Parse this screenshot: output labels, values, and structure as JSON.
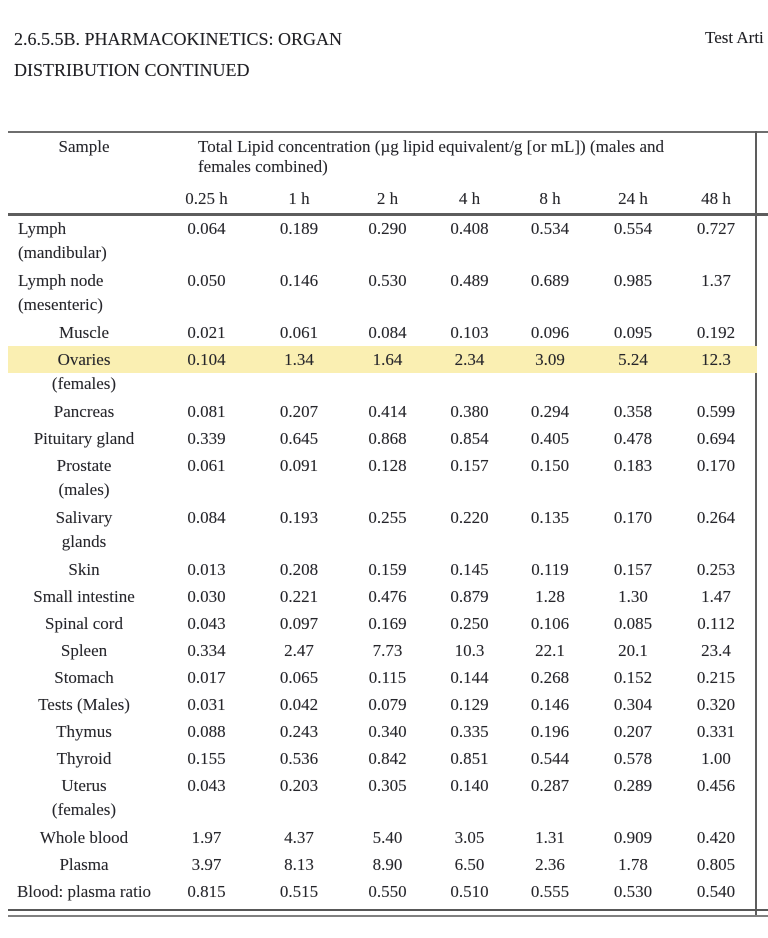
{
  "page": {
    "title_line1": "2.6.5.5B. PHARMACOKINETICS: ORGAN",
    "title_line2": "DISTRIBUTION CONTINUED",
    "header_right": "Test Arti"
  },
  "table": {
    "corner_header": "Sample",
    "span_header": "Total Lipid concentration (µg lipid equivalent/g [or mL]) (males and females combined)",
    "time_headers": [
      "0.25 h",
      "1 h",
      "2 h",
      "4 h",
      "8 h",
      "24 h",
      "48 h"
    ],
    "highlight_color": "#FAEFB2",
    "rows": [
      {
        "label": "Lymph",
        "align": "left",
        "values": [
          "0.064",
          "0.189",
          "0.290",
          "0.408",
          "0.534",
          "0.554",
          "0.727"
        ]
      },
      {
        "label": "(mandibular)",
        "align": "left",
        "values": []
      },
      {
        "label": "Lymph node",
        "align": "left",
        "values": [
          "0.050",
          "0.146",
          "0.530",
          "0.489",
          "0.689",
          "0.985",
          "1.37"
        ]
      },
      {
        "label": "(mesenteric)",
        "align": "left",
        "values": []
      },
      {
        "label": "Muscle",
        "align": "center",
        "values": [
          "0.021",
          "0.061",
          "0.084",
          "0.103",
          "0.096",
          "0.095",
          "0.192"
        ]
      },
      {
        "label": "Ovaries",
        "align": "center",
        "highlight": true,
        "values": [
          "0.104",
          "1.34",
          "1.64",
          "2.34",
          "3.09",
          "5.24",
          "12.3"
        ]
      },
      {
        "label": "(females)",
        "align": "center",
        "values": []
      },
      {
        "label": "Pancreas",
        "align": "center",
        "values": [
          "0.081",
          "0.207",
          "0.414",
          "0.380",
          "0.294",
          "0.358",
          "0.599"
        ]
      },
      {
        "label": "Pituitary gland",
        "align": "center",
        "values": [
          "0.339",
          "0.645",
          "0.868",
          "0.854",
          "0.405",
          "0.478",
          "0.694"
        ]
      },
      {
        "label": "Prostate",
        "align": "center",
        "values": [
          "0.061",
          "0.091",
          "0.128",
          "0.157",
          "0.150",
          "0.183",
          "0.170"
        ]
      },
      {
        "label": "(males)",
        "align": "center",
        "values": []
      },
      {
        "label": "Salivary",
        "align": "center",
        "values": [
          "0.084",
          "0.193",
          "0.255",
          "0.220",
          "0.135",
          "0.170",
          "0.264"
        ]
      },
      {
        "label": "glands",
        "align": "center",
        "values": []
      },
      {
        "label": "Skin",
        "align": "center",
        "values": [
          "0.013",
          "0.208",
          "0.159",
          "0.145",
          "0.119",
          "0.157",
          "0.253"
        ]
      },
      {
        "label": "Small intestine",
        "align": "center",
        "values": [
          "0.030",
          "0.221",
          "0.476",
          "0.879",
          "1.28",
          "1.30",
          "1.47"
        ]
      },
      {
        "label": "Spinal cord",
        "align": "center",
        "values": [
          "0.043",
          "0.097",
          "0.169",
          "0.250",
          "0.106",
          "0.085",
          "0.112"
        ]
      },
      {
        "label": "Spleen",
        "align": "center",
        "values": [
          "0.334",
          "2.47",
          "7.73",
          "10.3",
          "22.1",
          "20.1",
          "23.4"
        ]
      },
      {
        "label": "Stomach",
        "align": "center",
        "values": [
          "0.017",
          "0.065",
          "0.115",
          "0.144",
          "0.268",
          "0.152",
          "0.215"
        ]
      },
      {
        "label": "Tests (Males)",
        "align": "center",
        "values": [
          "0.031",
          "0.042",
          "0.079",
          "0.129",
          "0.146",
          "0.304",
          "0.320"
        ]
      },
      {
        "label": "Thymus",
        "align": "center",
        "values": [
          "0.088",
          "0.243",
          "0.340",
          "0.335",
          "0.196",
          "0.207",
          "0.331"
        ]
      },
      {
        "label": "Thyroid",
        "align": "center",
        "values": [
          "0.155",
          "0.536",
          "0.842",
          "0.851",
          "0.544",
          "0.578",
          "1.00"
        ]
      },
      {
        "label": "Uterus",
        "align": "center",
        "values": [
          "0.043",
          "0.203",
          "0.305",
          "0.140",
          "0.287",
          "0.289",
          "0.456"
        ]
      },
      {
        "label": "(females)",
        "align": "center",
        "values": []
      },
      {
        "label": "Whole blood",
        "align": "center",
        "values": [
          "1.97",
          "4.37",
          "5.40",
          "3.05",
          "1.31",
          "0.909",
          "0.420"
        ]
      },
      {
        "label": "Plasma",
        "align": "center",
        "values": [
          "3.97",
          "8.13",
          "8.90",
          "6.50",
          "2.36",
          "1.78",
          "0.805"
        ]
      },
      {
        "label": "Blood: plasma ratio",
        "align": "center",
        "values": [
          "0.815",
          "0.515",
          "0.550",
          "0.510",
          "0.555",
          "0.530",
          "0.540"
        ]
      }
    ]
  }
}
